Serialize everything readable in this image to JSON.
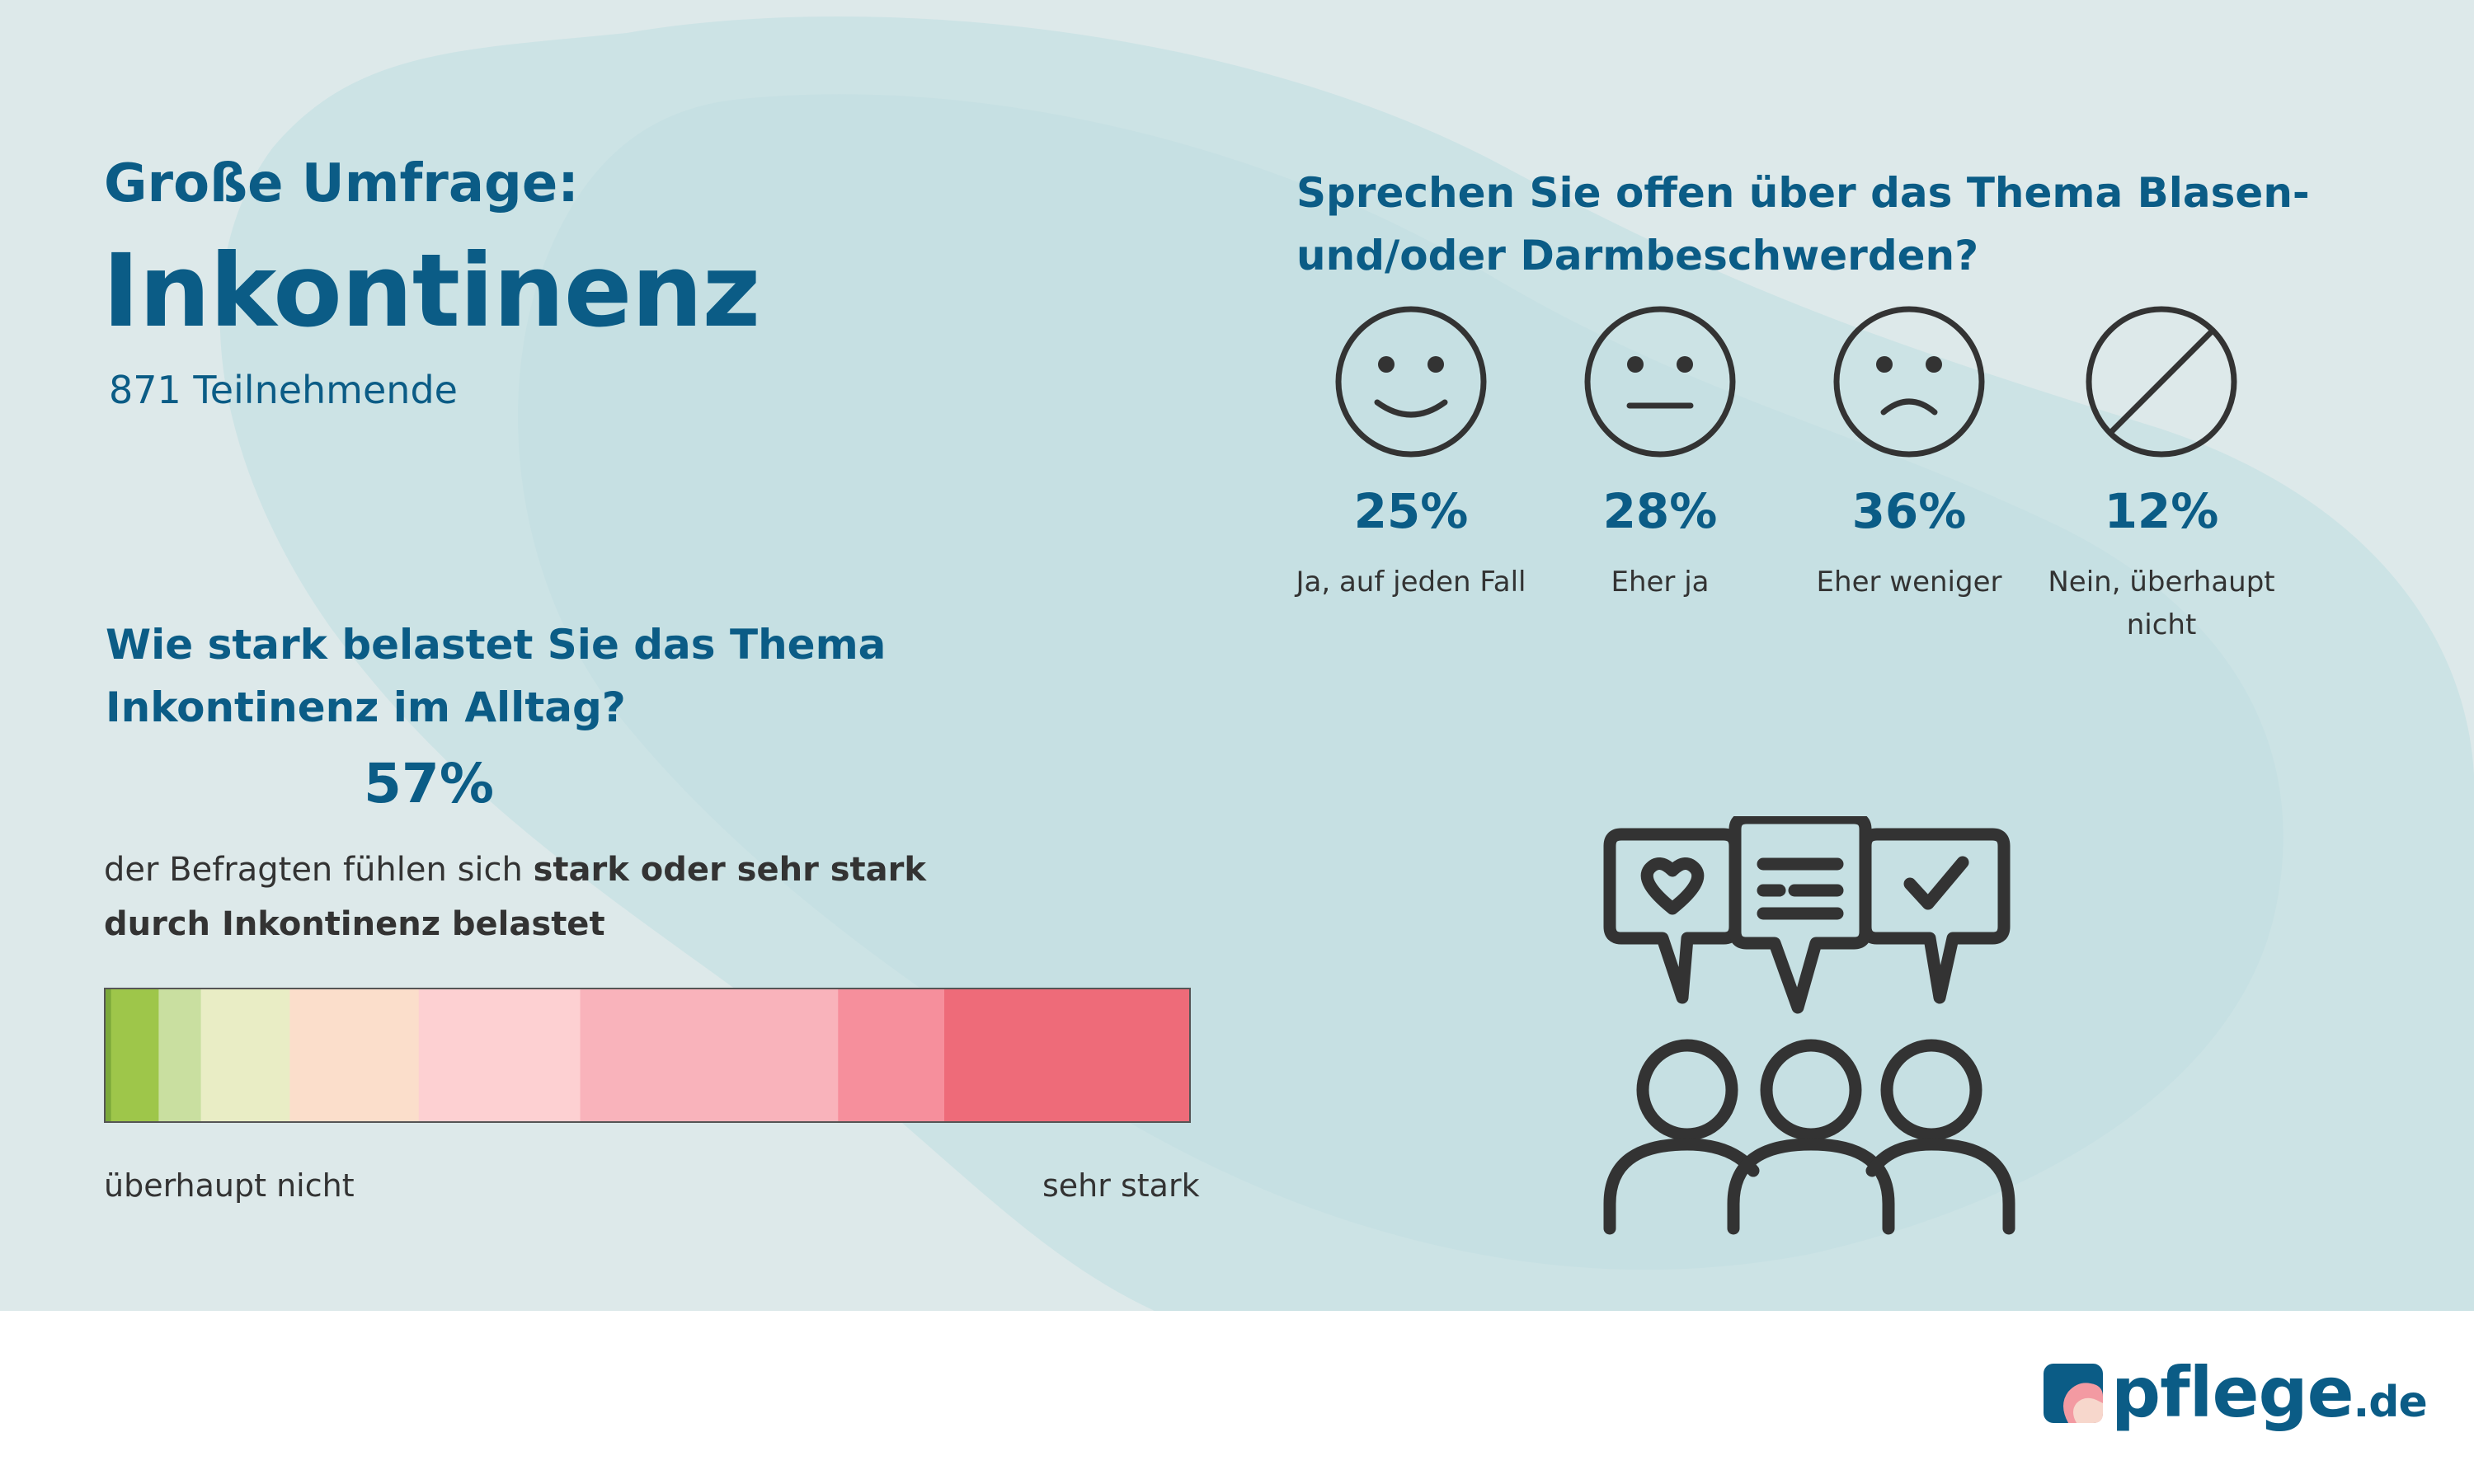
{
  "header": {
    "subtitle": "Große Umfrage:",
    "title": "Inkontinenz",
    "participants": "871 Teilnehmende"
  },
  "burden": {
    "question": "Wie stark belastet Sie das Thema Inkontinenz im Alltag?",
    "percent": "57%",
    "description_pre": "der Befragten fühlen sich ",
    "description_bold": "stark oder sehr stark durch Inkontinenz belastet",
    "scale_left_label": "überhaupt nicht",
    "scale_right_label": "sehr stark"
  },
  "openness": {
    "question": "Sprechen Sie offen über das Thema Blasen- und/oder Darmbeschwerden?"
  },
  "chart_data": [
    {
      "type": "bar",
      "title": "Sprechen Sie offen über das Thema Blasen- und/oder Darmbeschwerden?",
      "categories": [
        "Ja, auf jeden Fall",
        "Eher ja",
        "Eher weniger",
        "Nein, überhaupt nicht"
      ],
      "values": [
        25,
        28,
        36,
        12
      ],
      "value_labels": [
        "25%",
        "28%",
        "36%",
        "12%"
      ],
      "icons": [
        "smiley-happy-icon",
        "smiley-neutral-icon",
        "smiley-sad-icon",
        "prohibited-icon"
      ],
      "unit": "%"
    },
    {
      "type": "bar",
      "title": "Wie stark belastet Sie das Thema Inkontinenz im Alltag?",
      "orientation": "stacked-horizontal",
      "scale_range": [
        "überhaupt nicht",
        "sehr stark"
      ],
      "segments": [
        {
          "share": 0.5,
          "color": "#7aa83a"
        },
        {
          "share": 4.4,
          "color": "#9ec64a"
        },
        {
          "share": 3.9,
          "color": "#c9dfa0"
        },
        {
          "share": 8.2,
          "color": "#e9edc5"
        },
        {
          "share": 11.9,
          "color": "#fbdecb"
        },
        {
          "share": 14.9,
          "color": "#fdd0d2"
        },
        {
          "share": 23.8,
          "color": "#f9b3bb"
        },
        {
          "share": 9.8,
          "color": "#f68f9c"
        },
        {
          "share": 22.6,
          "color": "#ee6b79"
        }
      ],
      "highlight": "57%"
    }
  ],
  "brand": {
    "name": "pflege",
    "tld": ".de",
    "color": "#0b5c86"
  }
}
